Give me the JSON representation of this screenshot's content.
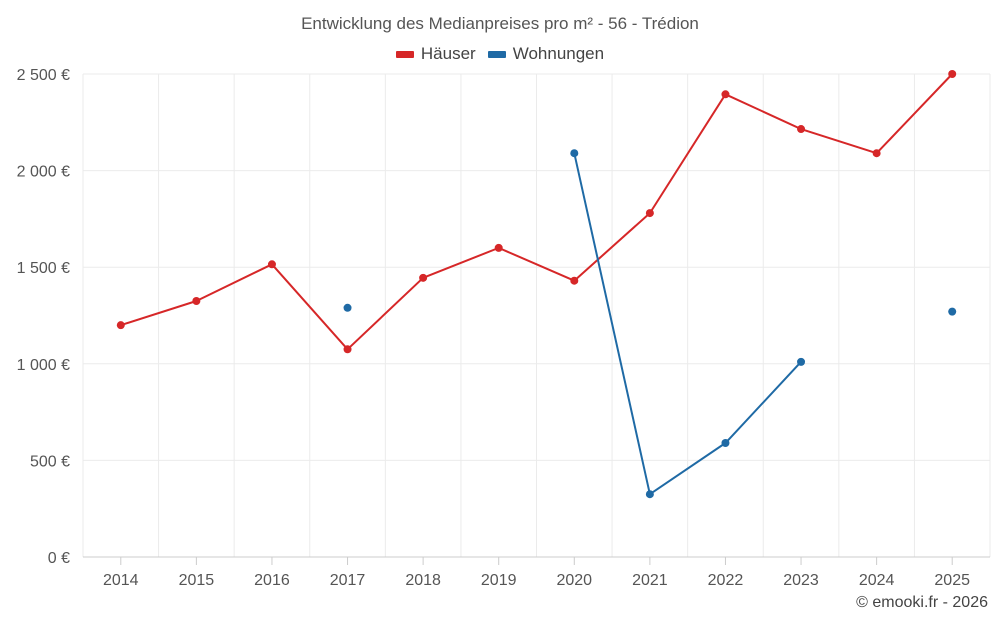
{
  "chart_data": {
    "type": "line",
    "title": "Entwicklung des Medianpreises pro m² - 56 - Trédion",
    "categories": [
      "2014",
      "2015",
      "2016",
      "2017",
      "2018",
      "2019",
      "2020",
      "2021",
      "2022",
      "2023",
      "2024",
      "2025"
    ],
    "ylim": [
      0,
      2500
    ],
    "yticks": [
      0,
      500,
      1000,
      1500,
      2000,
      2500
    ],
    "ytick_labels": [
      "0 €",
      "500 €",
      "1 000 €",
      "1 500 €",
      "2 000 €",
      "2 500 €"
    ],
    "xlabel": "",
    "ylabel": "",
    "grid": true,
    "legend_position": "top-center",
    "series": [
      {
        "name": "Häuser",
        "color": "#d62728",
        "values": [
          1200,
          1325,
          1515,
          1075,
          1445,
          1600,
          1430,
          1780,
          2395,
          2215,
          2090,
          2500
        ]
      },
      {
        "name": "Wohnungen",
        "color": "#1f6aa5",
        "values": [
          null,
          null,
          null,
          1290,
          null,
          null,
          2090,
          325,
          590,
          1010,
          null,
          1270
        ]
      }
    ]
  },
  "footer": {
    "copyright": "© emooki.fr - 2026"
  }
}
